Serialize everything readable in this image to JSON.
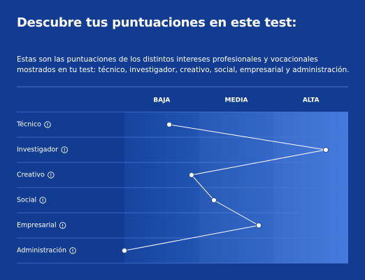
{
  "title": "Descubre tus puntuaciones en este test:",
  "description": "Estas son las puntuaciones de los distintos intereses profesionales y vocacionales mostrados en tu test: técnico, investigador, creativo, social, empresarial y administración.",
  "chart_data": {
    "type": "line",
    "levels": [
      "BAJA",
      "MEDIA",
      "ALTA"
    ],
    "categories": [
      "Técnico",
      "Investigador",
      "Creativo",
      "Social",
      "Empresarial",
      "Administración"
    ],
    "values": [
      0.6,
      2.7,
      0.9,
      1.2,
      1.8,
      0
    ],
    "xlim": [
      0,
      3
    ],
    "color": "#ffffff"
  }
}
